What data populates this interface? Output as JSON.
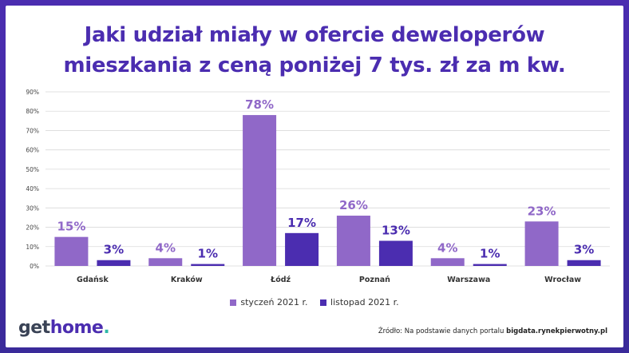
{
  "title_line1": "Jaki udział miały w ofercie deweloperów",
  "title_line2": "mieszkania z ceną poniżej 7 tys. zł za m kw.",
  "chart_data": {
    "type": "bar",
    "categories": [
      "Gdańsk",
      "Kraków",
      "Łódź",
      "Poznań",
      "Warszawa",
      "Wrocław"
    ],
    "series": [
      {
        "name": "styczeń 2021 r.",
        "values": [
          15,
          4,
          78,
          26,
          4,
          23
        ],
        "labels": [
          "15%",
          "4%",
          "78%",
          "26%",
          "4%",
          "23%"
        ],
        "color": "#9068c8"
      },
      {
        "name": "listopad 2021 r.",
        "values": [
          3,
          1,
          17,
          13,
          1,
          3
        ],
        "labels": [
          "3%",
          "1%",
          "17%",
          "13%",
          "1%",
          "3%"
        ],
        "color": "#4b2db0"
      }
    ],
    "ylim": [
      0,
      90
    ],
    "yticks": [
      "0%",
      "10%",
      "20%",
      "30%",
      "40%",
      "50%",
      "60%",
      "70%",
      "80%",
      "90%"
    ],
    "grid": true,
    "legend_position": "bottom-center"
  },
  "logo": {
    "part1": "get",
    "part2": "home",
    "dot": "."
  },
  "source": {
    "prefix": "Źródło: Na podstawie danych portalu ",
    "site": "bigdata.rynekpierwotny.pl"
  }
}
